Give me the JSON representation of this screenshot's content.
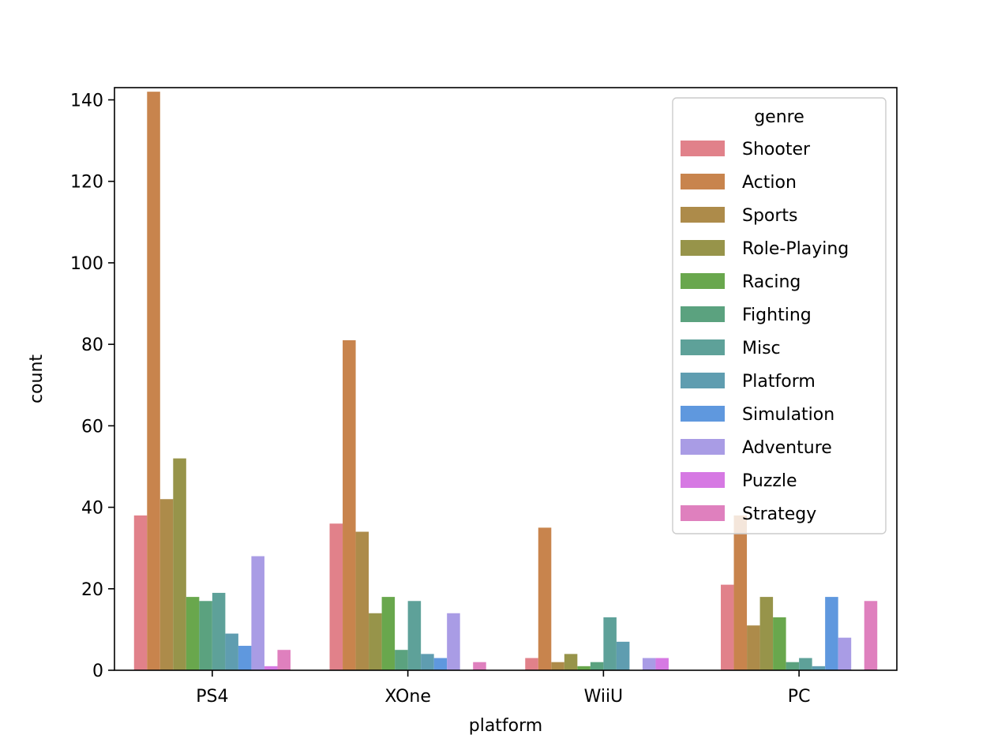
{
  "chart_data": {
    "type": "bar",
    "xlabel": "platform",
    "ylabel": "count",
    "ylim": [
      0,
      143
    ],
    "yticks": [
      0,
      20,
      40,
      60,
      80,
      100,
      120,
      140
    ],
    "categories": [
      "PS4",
      "XOne",
      "WiiU",
      "PC"
    ],
    "legend_title": "genre",
    "legend_position": "upper right",
    "grid": false,
    "series": [
      {
        "name": "Shooter",
        "color": "#e1818a",
        "values": [
          38,
          36,
          3,
          21
        ]
      },
      {
        "name": "Action",
        "color": "#c8844d",
        "values": [
          142,
          81,
          35,
          38
        ]
      },
      {
        "name": "Sports",
        "color": "#ad8b4a",
        "values": [
          42,
          34,
          2,
          11
        ]
      },
      {
        "name": "Role-Playing",
        "color": "#97944a",
        "values": [
          52,
          14,
          4,
          18
        ]
      },
      {
        "name": "Racing",
        "color": "#69a74d",
        "values": [
          18,
          18,
          1,
          13
        ]
      },
      {
        "name": "Fighting",
        "color": "#5ba27f",
        "values": [
          17,
          5,
          2,
          2
        ]
      },
      {
        "name": "Misc",
        "color": "#5ea199",
        "values": [
          19,
          17,
          13,
          3
        ]
      },
      {
        "name": "Platform",
        "color": "#5f9db0",
        "values": [
          9,
          4,
          7,
          1
        ]
      },
      {
        "name": "Simulation",
        "color": "#5f98de",
        "values": [
          6,
          3,
          0,
          18
        ]
      },
      {
        "name": "Adventure",
        "color": "#a99ce5",
        "values": [
          28,
          14,
          3,
          8
        ]
      },
      {
        "name": "Puzzle",
        "color": "#d679e3",
        "values": [
          1,
          0,
          3,
          0
        ]
      },
      {
        "name": "Strategy",
        "color": "#df80be",
        "values": [
          5,
          2,
          0,
          17
        ]
      }
    ]
  }
}
